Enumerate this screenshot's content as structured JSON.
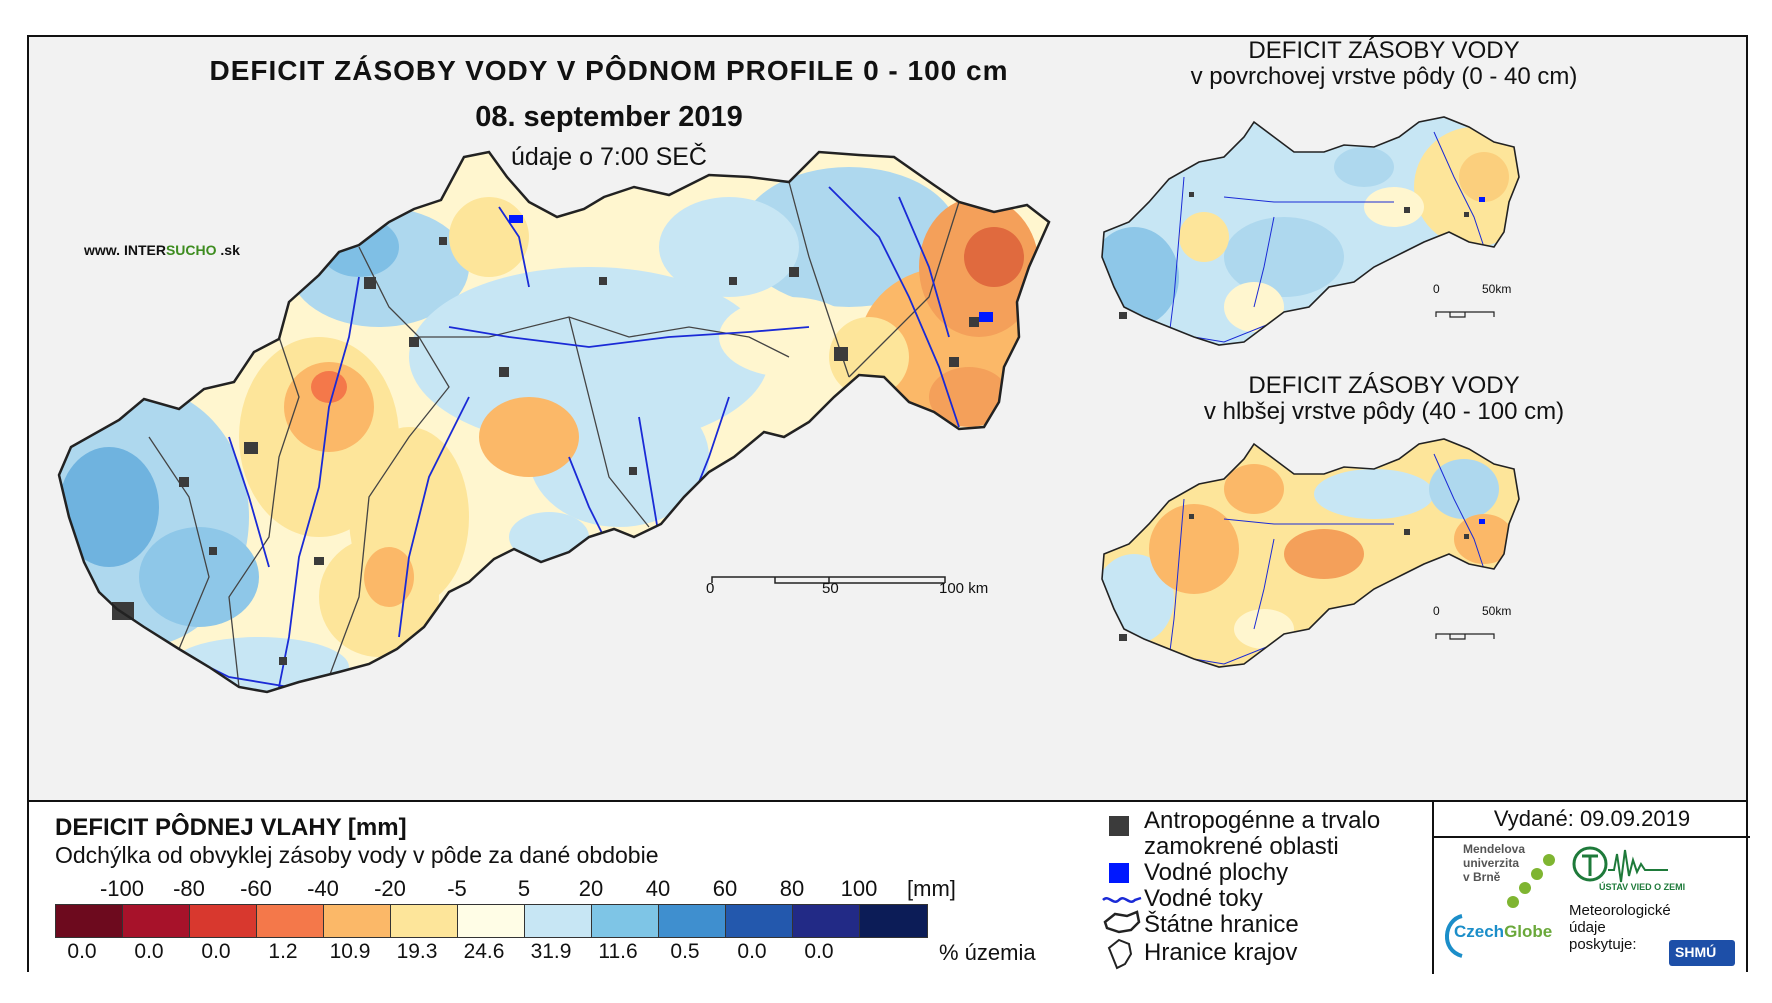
{
  "main": {
    "title": "DEFICIT ZÁSOBY VODY V PÔDNOM PROFILE 0 - 100 cm",
    "date": "08. september 2019",
    "time": "údaje o 7:00 SEČ",
    "website": {
      "prefix": "www.",
      "brand_a": "INTER",
      "brand_b": "SUCHO",
      "suffix": ".sk"
    },
    "scale": {
      "ticks": [
        "0",
        "50",
        "100 km"
      ]
    }
  },
  "surface_map": {
    "title": "DEFICIT ZÁSOBY VODY",
    "subtitle": "v povrchovej vrstve pôdy (0 - 40 cm)",
    "scale": {
      "ticks": [
        "0",
        "50km"
      ]
    }
  },
  "deep_map": {
    "title": "DEFICIT ZÁSOBY VODY",
    "subtitle": "v hlbšej vrstve pôdy (40 - 100 cm)",
    "scale": {
      "ticks": [
        "0",
        "50km"
      ]
    }
  },
  "legend": {
    "title": "DEFICIT PÔDNEJ VLAHY [mm]",
    "subtitle": "Odchýlka od obvyklej zásoby vody v pôde za dané obdobie",
    "ticks": [
      "-100",
      "-80",
      "-60",
      "-40",
      "-20",
      "-5",
      "5",
      "20",
      "40",
      "60",
      "80",
      "100"
    ],
    "unit": "[mm]",
    "colors": [
      "#6d0a1e",
      "#a7122a",
      "#d8382e",
      "#f4784a",
      "#fbb868",
      "#fde59a",
      "#fffde6",
      "#c7e6f4",
      "#7ec5e6",
      "#3f8fcf",
      "#2358ad",
      "#222a86",
      "#0c1c57"
    ],
    "percentages": [
      "0.0",
      "0.0",
      "0.0",
      "1.2",
      "10.9",
      "19.3",
      "24.6",
      "31.9",
      "11.6",
      "0.5",
      "0.0",
      "0.0"
    ],
    "percent_label": "% územia"
  },
  "symbols": {
    "anthropogenic": "Antropogénne a trvalo",
    "anthropogenic_2": "zamokrené oblasti",
    "water_bodies": "Vodné plochy",
    "rivers": "Vodné toky",
    "state_border": "Štátne hranice",
    "region_border": "Hranice krajov"
  },
  "issued": "Vydané: 09.09.2019",
  "logos": {
    "mendel_1": "Mendelova",
    "mendel_2": "univerzita",
    "mendel_3": "v Brně",
    "czechglobe_a": "Czech",
    "czechglobe_b": "Globe",
    "uvz": "ÚSTAV VIED O ZEMI",
    "meteo_1": "Meteorologické",
    "meteo_2": "údaje",
    "meteo_3": "poskytuje:",
    "shmu": "SHMÚ"
  },
  "colors": {
    "river": "#1a2ad6",
    "water_body": "#0018ff",
    "urban": "#3b3b3b",
    "border": "#333333"
  }
}
